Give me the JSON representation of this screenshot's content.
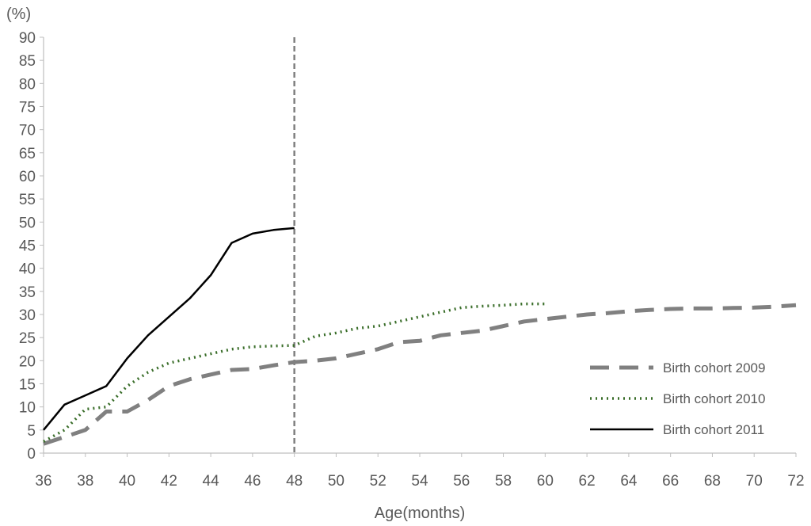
{
  "chart_data": {
    "type": "line",
    "title": "",
    "xlabel": "Age(months)",
    "ylabel": "(%)",
    "xlim": [
      36,
      72
    ],
    "ylim": [
      0,
      90
    ],
    "x_ticks": [
      36,
      38,
      40,
      42,
      44,
      46,
      48,
      50,
      52,
      54,
      56,
      58,
      60,
      62,
      64,
      66,
      68,
      70,
      72
    ],
    "y_ticks": [
      0,
      5,
      10,
      15,
      20,
      25,
      30,
      35,
      40,
      45,
      50,
      55,
      60,
      65,
      70,
      75,
      80,
      85,
      90
    ],
    "grid": false,
    "legend_position": "bottom-right",
    "reference_line": {
      "x": 48,
      "style": "dashed",
      "color": "#7f7f7f"
    },
    "series": [
      {
        "name": "Birth cohort 2009",
        "style": "dashed",
        "color": "#808080",
        "x": [
          36,
          37,
          38,
          39,
          40,
          41,
          42,
          43,
          44,
          45,
          46,
          47,
          48,
          49,
          50,
          51,
          52,
          53,
          54,
          55,
          56,
          57,
          58,
          59,
          60,
          61,
          62,
          63,
          64,
          65,
          66,
          67,
          68,
          69,
          70,
          71,
          72
        ],
        "y": [
          2,
          3.5,
          5,
          9,
          9,
          11.5,
          14.5,
          16,
          17,
          18,
          18.2,
          19,
          19.7,
          20,
          20.5,
          21.5,
          22.5,
          24,
          24.3,
          25.5,
          26,
          26.5,
          27.5,
          28.5,
          29,
          29.5,
          30,
          30.3,
          30.7,
          31,
          31.2,
          31.3,
          31.3,
          31.4,
          31.5,
          31.7,
          32
        ]
      },
      {
        "name": "Birth cohort 2010",
        "style": "dotted",
        "color": "#3a6e2a",
        "x": [
          36,
          37,
          38,
          39,
          40,
          41,
          42,
          43,
          44,
          45,
          46,
          47,
          48,
          49,
          50,
          51,
          52,
          53,
          54,
          55,
          56,
          57,
          58,
          59,
          60
        ],
        "y": [
          2.5,
          5,
          9.5,
          10,
          14.5,
          17.5,
          19.5,
          20.5,
          21.5,
          22.5,
          23,
          23.2,
          23.3,
          25.3,
          26,
          27,
          27.5,
          28.5,
          29.5,
          30.5,
          31.5,
          31.8,
          32,
          32.3,
          32.3
        ]
      },
      {
        "name": "Birth cohort 2011",
        "style": "solid",
        "color": "#000000",
        "x": [
          36,
          37,
          38,
          39,
          40,
          41,
          42,
          43,
          44,
          45,
          46,
          47,
          48
        ],
        "y": [
          5,
          10.5,
          12.5,
          14.5,
          20.5,
          25.5,
          29.5,
          33.5,
          38.5,
          45.5,
          47.5,
          48.3,
          48.7
        ]
      }
    ]
  }
}
